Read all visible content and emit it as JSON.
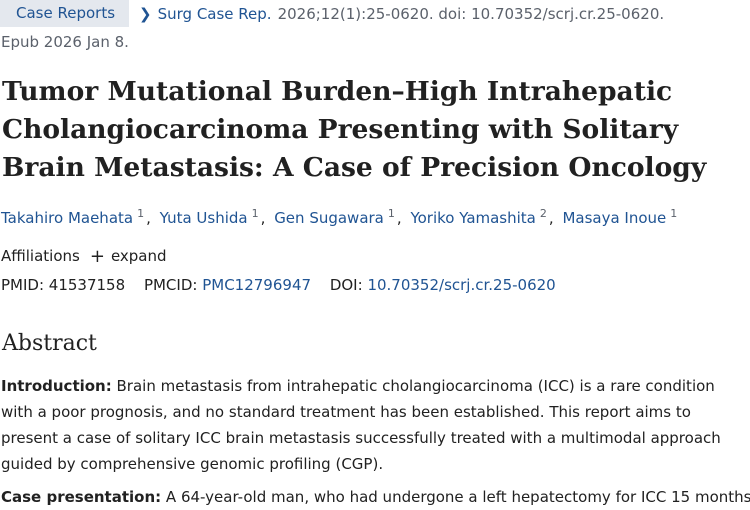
{
  "header": {
    "tag": "Case Reports",
    "journal": "Surg Case Rep.",
    "citation": "2026;12(1):25-0620. doi: 10.70352/scrj.cr.25-0620.",
    "epub": "Epub 2026 Jan 8."
  },
  "article": {
    "title": "Tumor Mutational Burden–High Intrahepatic Cholangiocarcinoma Presenting with Solitary Brain Metastasis: A Case of Precision Oncology",
    "authors": [
      {
        "name": "Takahiro Maehata",
        "sup": "1"
      },
      {
        "name": "Yuta Ushida",
        "sup": "1"
      },
      {
        "name": "Gen Sugawara",
        "sup": "1"
      },
      {
        "name": "Yoriko Yamashita",
        "sup": "2"
      },
      {
        "name": "Masaya Inoue",
        "sup": "1"
      }
    ],
    "affiliations_label": "Affiliations",
    "expand_label": "expand",
    "pmid_label": "PMID:",
    "pmid": "41537158",
    "pmcid_label": "PMCID:",
    "pmcid": "PMC12796947",
    "doi_label": "DOI:",
    "doi": "10.70352/scrj.cr.25-0620"
  },
  "abstract": {
    "heading": "Abstract",
    "intro_label": "Introduction:",
    "intro_text": " Brain metastasis from intrahepatic cholangiocarcinoma (ICC) is a rare condition with a poor prognosis, and no standard treatment has been established. This report aims to present a case of solitary ICC brain metastasis successfully treated with a multimodal approach guided by comprehensive genomic profiling (CGP).",
    "case_label": "Case presentation:",
    "case_text": " A 64-year-old man, who had undergone a left hepatectomy for ICC 15 months"
  },
  "colors": {
    "link": "#205493",
    "tag_bg": "#e4e8ee",
    "muted": "#5b616b",
    "text": "#212121"
  }
}
